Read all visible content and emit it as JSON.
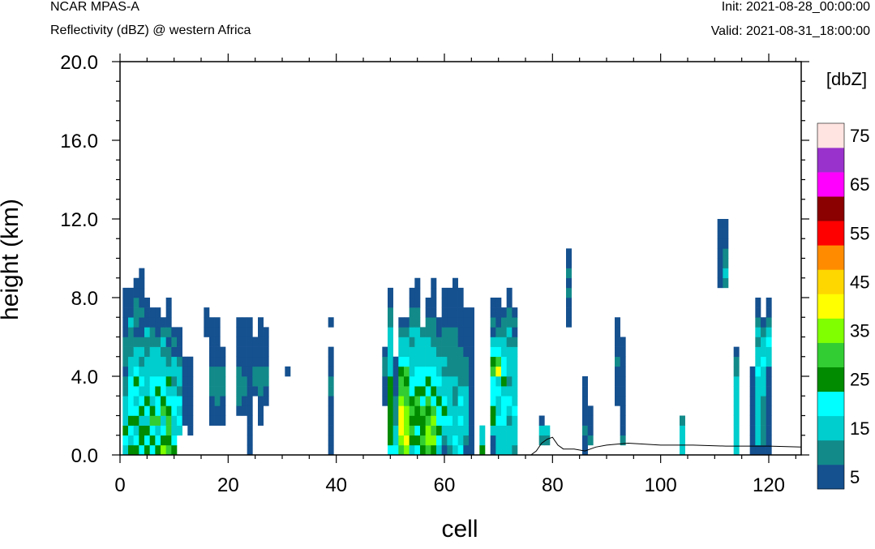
{
  "header": {
    "model": "NCAR MPAS-A",
    "subtitle": "Reflectivity (dBZ) @ western Africa",
    "init": "Init: 2021-08-28_00:00:00",
    "valid": "Valid: 2021-08-31_18:00:00"
  },
  "chart_data": {
    "type": "heatmap",
    "title": "Reflectivity (dBZ) @ western Africa",
    "xlabel": "cell",
    "ylabel": "height (km)",
    "xlim": [
      0,
      126
    ],
    "ylim": [
      0,
      20
    ],
    "xticks": [
      "0",
      "20",
      "40",
      "60",
      "80",
      "100",
      "120"
    ],
    "yticks": [
      "0.0",
      "4.0",
      "8.0",
      "12.0",
      "16.0",
      "20.0"
    ],
    "colorbar": {
      "title": "[dbZ]",
      "tick_labels": [
        "5",
        "15",
        "25",
        "35",
        "45",
        "55",
        "65",
        "75"
      ],
      "levels": [
        5,
        10,
        15,
        20,
        25,
        30,
        35,
        40,
        45,
        50,
        55,
        60,
        65,
        70,
        75
      ],
      "colors": [
        "#15508f",
        "#128a8a",
        "#00cdcd",
        "#00ffff",
        "#008b00",
        "#32cd32",
        "#7fff00",
        "#ffff00",
        "#ffd700",
        "#ff8c00",
        "#ff0000",
        "#8b0000",
        "#ff00ff",
        "#9932cc",
        "#ffe4e1"
      ]
    },
    "cell_height_km": 0.5,
    "terrain": [
      [
        76,
        0
      ],
      [
        77,
        0.2
      ],
      [
        78,
        0.6
      ],
      [
        79,
        0.8
      ],
      [
        80,
        0.9
      ],
      [
        81,
        0.5
      ],
      [
        82,
        0.3
      ],
      [
        84,
        0.3
      ],
      [
        86,
        0.2
      ],
      [
        88,
        0.4
      ],
      [
        90,
        0.5
      ],
      [
        94,
        0.6
      ],
      [
        100,
        0.5
      ],
      [
        106,
        0.5
      ],
      [
        112,
        0.45
      ],
      [
        120,
        0.45
      ],
      [
        126,
        0.4
      ]
    ],
    "columns": [
      {
        "x": 1,
        "top": 8.5,
        "dbz": [
          15,
          20,
          25,
          15,
          15,
          15,
          10,
          10,
          5,
          10,
          10,
          10,
          5,
          5,
          5,
          5,
          5
        ]
      },
      {
        "x": 2,
        "top": 8.5,
        "dbz": [
          25,
          15,
          20,
          25,
          20,
          20,
          20,
          20,
          15,
          15,
          10,
          10,
          10,
          15,
          5,
          5,
          5
        ]
      },
      {
        "x": 3,
        "top": 9.0,
        "dbz": [
          25,
          20,
          15,
          25,
          20,
          15,
          20,
          25,
          20,
          15,
          15,
          10,
          5,
          10,
          10,
          10,
          5,
          5
        ]
      },
      {
        "x": 4,
        "top": 9.5,
        "dbz": [
          20,
          25,
          25,
          15,
          25,
          20,
          15,
          20,
          15,
          10,
          15,
          10,
          5,
          5,
          10,
          5,
          5,
          5,
          5
        ]
      },
      {
        "x": 5,
        "top": 8.0,
        "dbz": [
          25,
          20,
          25,
          15,
          20,
          25,
          15,
          15,
          15,
          15,
          10,
          10,
          15,
          5,
          5,
          5
        ]
      },
      {
        "x": 6,
        "top": 7.5,
        "dbz": [
          20,
          25,
          20,
          30,
          25,
          15,
          20,
          20,
          15,
          15,
          15,
          10,
          10,
          5,
          5
        ]
      },
      {
        "x": 7,
        "top": 7.5,
        "dbz": [
          25,
          20,
          15,
          30,
          20,
          20,
          25,
          20,
          15,
          15,
          15,
          10,
          5,
          5,
          5
        ]
      },
      {
        "x": 8,
        "top": 7.0,
        "dbz": [
          35,
          25,
          20,
          15,
          30,
          25,
          20,
          20,
          15,
          15,
          10,
          15,
          10,
          5
        ]
      },
      {
        "x": 9,
        "top": 8.0,
        "dbz": [
          30,
          25,
          30,
          30,
          25,
          20,
          15,
          25,
          15,
          10,
          10,
          5,
          10,
          5,
          5,
          5
        ]
      },
      {
        "x": 10,
        "top": 6.5,
        "dbz": [
          25,
          20,
          15,
          15,
          20,
          20,
          15,
          10,
          15,
          15,
          5,
          10,
          5
        ]
      },
      {
        "x": 11,
        "top": 6.5,
        "dbz": [
          0,
          0,
          15,
          20,
          15,
          20,
          10,
          15,
          15,
          10,
          5,
          5,
          5
        ]
      },
      {
        "x": 12,
        "top": 5.0,
        "dbz": [
          0,
          0,
          0,
          5,
          5,
          5,
          5,
          5,
          5,
          5
        ]
      },
      {
        "x": 13,
        "top": 5.0,
        "dbz": [
          0,
          0,
          5,
          5,
          5,
          5,
          5,
          5,
          5,
          5
        ]
      },
      {
        "x": 16,
        "top": 7.5,
        "dbz": [
          0,
          0,
          0,
          0,
          0,
          0,
          0,
          0,
          0,
          0,
          0,
          0,
          5,
          5,
          5
        ]
      },
      {
        "x": 17,
        "top": 7.0,
        "dbz": [
          0,
          0,
          0,
          5,
          5,
          5,
          10,
          10,
          10,
          5,
          5,
          5,
          5,
          5
        ]
      },
      {
        "x": 18,
        "top": 7.0,
        "dbz": [
          0,
          0,
          0,
          5,
          5,
          10,
          10,
          10,
          10,
          5,
          5,
          5,
          5,
          5
        ]
      },
      {
        "x": 19,
        "top": 5.5,
        "dbz": [
          0,
          0,
          0,
          5,
          5,
          5,
          10,
          10,
          10,
          5,
          5
        ]
      },
      {
        "x": 22,
        "top": 7.0,
        "dbz": [
          0,
          0,
          0,
          0,
          5,
          10,
          10,
          10,
          10,
          5,
          5,
          5,
          5,
          5
        ]
      },
      {
        "x": 23,
        "top": 7.0,
        "dbz": [
          0,
          0,
          0,
          0,
          5,
          5,
          10,
          10,
          5,
          5,
          5,
          5,
          5,
          5
        ]
      },
      {
        "x": 24,
        "top": 7.0,
        "dbz": [
          5,
          5,
          5,
          5,
          5,
          5,
          5,
          5,
          5,
          5,
          5,
          5,
          5,
          5
        ]
      },
      {
        "x": 25,
        "top": 6.0,
        "dbz": [
          0,
          0,
          0,
          0,
          0,
          0,
          5,
          10,
          10,
          5,
          5,
          5
        ]
      },
      {
        "x": 26,
        "top": 7.0,
        "dbz": [
          0,
          0,
          0,
          5,
          5,
          5,
          10,
          10,
          10,
          5,
          5,
          5,
          5,
          5
        ]
      },
      {
        "x": 27,
        "top": 6.5,
        "dbz": [
          0,
          0,
          0,
          0,
          0,
          5,
          5,
          10,
          10,
          5,
          5,
          5,
          5
        ]
      },
      {
        "x": 31,
        "top": 4.5,
        "dbz": [
          0,
          0,
          0,
          0,
          0,
          0,
          0,
          0,
          5
        ]
      },
      {
        "x": 39,
        "top": 7.0,
        "dbz": [
          5,
          5,
          5,
          5,
          5,
          5,
          10,
          10,
          5,
          5,
          5,
          0,
          0,
          5
        ]
      },
      {
        "x": 49,
        "top": 5.5,
        "dbz": [
          0,
          0,
          0,
          0,
          0,
          5,
          5,
          5,
          10,
          10,
          5
        ]
      },
      {
        "x": 50,
        "top": 8.5,
        "dbz": [
          20,
          25,
          25,
          25,
          25,
          25,
          25,
          25,
          15,
          15,
          15,
          15,
          15,
          10,
          10,
          5,
          5
        ]
      },
      {
        "x": 51,
        "top": 5.0,
        "dbz": [
          20,
          15,
          15,
          10,
          10,
          10,
          5,
          5,
          5,
          5
        ]
      },
      {
        "x": 52,
        "top": 7.0,
        "dbz": [
          30,
          35,
          40,
          40,
          40,
          35,
          30,
          30,
          25,
          20,
          15,
          15,
          10,
          5
        ]
      },
      {
        "x": 53,
        "top": 7.0,
        "dbz": [
          35,
          40,
          35,
          35,
          35,
          30,
          30,
          25,
          30,
          20,
          15,
          15,
          10,
          5
        ]
      },
      {
        "x": 54,
        "top": 8.5,
        "dbz": [
          15,
          25,
          30,
          25,
          30,
          25,
          20,
          20,
          15,
          15,
          15,
          10,
          15,
          10,
          10,
          5,
          5
        ]
      },
      {
        "x": 55,
        "top": 9.0,
        "dbz": [
          20,
          25,
          20,
          25,
          25,
          30,
          25,
          20,
          20,
          15,
          15,
          15,
          15,
          10,
          10,
          5,
          5,
          5
        ]
      },
      {
        "x": 56,
        "top": 6.5,
        "dbz": [
          25,
          30,
          25,
          25,
          30,
          20,
          25,
          20,
          20,
          15,
          15,
          15,
          10
        ]
      },
      {
        "x": 57,
        "top": 8.0,
        "dbz": [
          30,
          35,
          35,
          30,
          25,
          30,
          20,
          25,
          20,
          15,
          15,
          15,
          10,
          10,
          5,
          5
        ]
      },
      {
        "x": 58,
        "top": 9.0,
        "dbz": [
          25,
          35,
          30,
          35,
          30,
          20,
          25,
          20,
          20,
          15,
          15,
          10,
          10,
          10,
          5,
          5,
          5,
          5
        ]
      },
      {
        "x": 59,
        "top": 7.0,
        "dbz": [
          15,
          20,
          25,
          20,
          20,
          25,
          15,
          20,
          15,
          15,
          10,
          10,
          5,
          5
        ]
      },
      {
        "x": 60,
        "top": 8.5,
        "dbz": [
          5,
          10,
          15,
          20,
          25,
          20,
          15,
          15,
          10,
          15,
          10,
          10,
          10,
          5,
          5,
          5,
          5
        ]
      },
      {
        "x": 61,
        "top": 8.5,
        "dbz": [
          10,
          15,
          15,
          20,
          15,
          15,
          15,
          15,
          10,
          10,
          10,
          10,
          10,
          5,
          5,
          5,
          5
        ]
      },
      {
        "x": 62,
        "top": 9.0,
        "dbz": [
          15,
          20,
          15,
          15,
          15,
          10,
          10,
          15,
          10,
          10,
          10,
          10,
          10,
          5,
          5,
          5,
          5,
          5
        ]
      },
      {
        "x": 63,
        "top": 8.5,
        "dbz": [
          20,
          15,
          15,
          20,
          15,
          20,
          15,
          10,
          10,
          10,
          10,
          5,
          5,
          5,
          5,
          5,
          5
        ]
      },
      {
        "x": 64,
        "top": 7.5,
        "dbz": [
          5,
          10,
          15,
          15,
          15,
          15,
          15,
          10,
          10,
          10,
          5,
          5,
          5,
          5,
          5
        ]
      },
      {
        "x": 65,
        "top": 7.5,
        "dbz": [
          5,
          5,
          5,
          5,
          5,
          5,
          5,
          5,
          5,
          5,
          5,
          5,
          5,
          5,
          5
        ]
      },
      {
        "x": 67,
        "top": 1.5,
        "dbz": [
          25,
          15,
          15
        ]
      },
      {
        "x": 69,
        "top": 8.0,
        "dbz": [
          5,
          5,
          15,
          25,
          25,
          20,
          20,
          20,
          30,
          25,
          20,
          15,
          5,
          10,
          5,
          5
        ]
      },
      {
        "x": 70,
        "top": 8.0,
        "dbz": [
          15,
          15,
          15,
          20,
          15,
          15,
          20,
          15,
          40,
          30,
          20,
          15,
          10,
          5,
          5,
          5
        ]
      },
      {
        "x": 71,
        "top": 7.5,
        "dbz": [
          15,
          15,
          15,
          20,
          20,
          20,
          15,
          25,
          20,
          20,
          15,
          15,
          10,
          10,
          5
        ]
      },
      {
        "x": 72,
        "top": 8.5,
        "dbz": [
          15,
          15,
          15,
          10,
          15,
          20,
          15,
          10,
          15,
          15,
          15,
          10,
          15,
          10,
          10,
          5,
          5
        ]
      },
      {
        "x": 73,
        "top": 7.5,
        "dbz": [
          10,
          15,
          15,
          15,
          20,
          15,
          15,
          15,
          15,
          15,
          15,
          10,
          5,
          10,
          5
        ]
      },
      {
        "x": 78,
        "top": 2.0,
        "dbz": [
          0,
          10,
          15,
          5
        ]
      },
      {
        "x": 79,
        "top": 1.5,
        "dbz": [
          0,
          10,
          15
        ]
      },
      {
        "x": 83,
        "top": 10.5,
        "dbz": [
          0,
          0,
          0,
          0,
          0,
          0,
          0,
          0,
          0,
          0,
          0,
          0,
          0,
          5,
          5,
          5,
          10,
          5,
          10,
          5,
          5
        ]
      },
      {
        "x": 86,
        "top": 4.0,
        "dbz": [
          5,
          5,
          10,
          5,
          5,
          5,
          5,
          5
        ]
      },
      {
        "x": 87,
        "top": 2.5,
        "dbz": [
          0,
          10,
          5,
          5,
          5
        ]
      },
      {
        "x": 92,
        "top": 7.0,
        "dbz": [
          0,
          0,
          0,
          0,
          0,
          5,
          5,
          5,
          5,
          10,
          5,
          5,
          5,
          5
        ]
      },
      {
        "x": 93,
        "top": 6.0,
        "dbz": [
          0,
          10,
          5,
          5,
          5,
          5,
          5,
          5,
          5,
          5,
          5,
          5
        ]
      },
      {
        "x": 104,
        "top": 2.0,
        "dbz": [
          15,
          15,
          15,
          10
        ]
      },
      {
        "x": 111,
        "top": 12.0,
        "dbz": [
          0,
          0,
          0,
          0,
          0,
          0,
          0,
          0,
          0,
          0,
          0,
          0,
          0,
          0,
          0,
          0,
          0,
          5,
          5,
          5,
          5,
          5,
          5,
          5
        ]
      },
      {
        "x": 112,
        "top": 12.0,
        "dbz": [
          0,
          0,
          0,
          0,
          0,
          0,
          0,
          0,
          0,
          0,
          0,
          0,
          0,
          0,
          0,
          0,
          0,
          10,
          15,
          10,
          10,
          5,
          5,
          5
        ]
      },
      {
        "x": 114,
        "top": 5.5,
        "dbz": [
          15,
          15,
          15,
          15,
          15,
          15,
          15,
          15,
          10,
          10,
          5
        ]
      },
      {
        "x": 117,
        "top": 4.5,
        "dbz": [
          5,
          5,
          5,
          5,
          5,
          5,
          5,
          5,
          5
        ]
      },
      {
        "x": 118,
        "top": 8.0,
        "dbz": [
          5,
          15,
          15,
          15,
          15,
          15,
          15,
          15,
          20,
          15,
          15,
          10,
          15,
          10,
          5,
          5
        ]
      },
      {
        "x": 119,
        "top": 7.0,
        "dbz": [
          5,
          10,
          10,
          10,
          10,
          10,
          15,
          15,
          15,
          20,
          15,
          15,
          10,
          5
        ]
      },
      {
        "x": 120,
        "top": 8.0,
        "dbz": [
          5,
          5,
          5,
          5,
          5,
          5,
          5,
          5,
          5,
          15,
          15,
          20,
          15,
          10,
          5,
          5
        ]
      }
    ]
  }
}
